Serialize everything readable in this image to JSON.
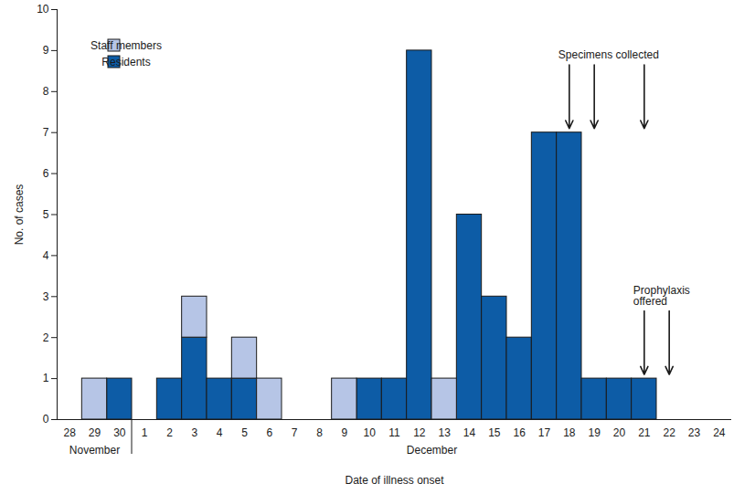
{
  "chart_data": {
    "type": "bar",
    "stacked": true,
    "x_label": "Date of illness onset",
    "y_label": "No. of cases",
    "categories": [
      "28",
      "29",
      "30",
      "1",
      "2",
      "3",
      "4",
      "5",
      "6",
      "7",
      "8",
      "9",
      "10",
      "11",
      "12",
      "13",
      "14",
      "15",
      "16",
      "17",
      "18",
      "19",
      "20",
      "21",
      "22",
      "23",
      "24"
    ],
    "series": [
      {
        "name": "Residents",
        "color": "#0d5ca6",
        "values": [
          0,
          0,
          1,
          0,
          1,
          2,
          1,
          1,
          0,
          0,
          0,
          0,
          1,
          1,
          9,
          0,
          5,
          3,
          2,
          7,
          7,
          1,
          1,
          1,
          0,
          0,
          0
        ]
      },
      {
        "name": "Staff members",
        "color": "#b6c5e6",
        "values": [
          0,
          1,
          0,
          0,
          0,
          1,
          0,
          1,
          1,
          0,
          0,
          1,
          0,
          0,
          0,
          1,
          0,
          0,
          0,
          0,
          0,
          0,
          0,
          0,
          0,
          0,
          0
        ]
      }
    ],
    "ylim": [
      0,
      10
    ],
    "yticks": [
      0,
      1,
      2,
      3,
      4,
      5,
      6,
      7,
      8,
      9,
      10
    ],
    "legend": "upper left",
    "month_labels": [
      {
        "text": "November",
        "from": "28",
        "to": "30"
      },
      {
        "text": "December",
        "from": "1",
        "to": "24"
      }
    ],
    "annotations": [
      {
        "text": "Specimens collected",
        "x": [
          "18",
          "19",
          "21"
        ]
      },
      {
        "text": "Prophylaxis\noffered",
        "x": [
          "21",
          "22"
        ]
      }
    ]
  }
}
